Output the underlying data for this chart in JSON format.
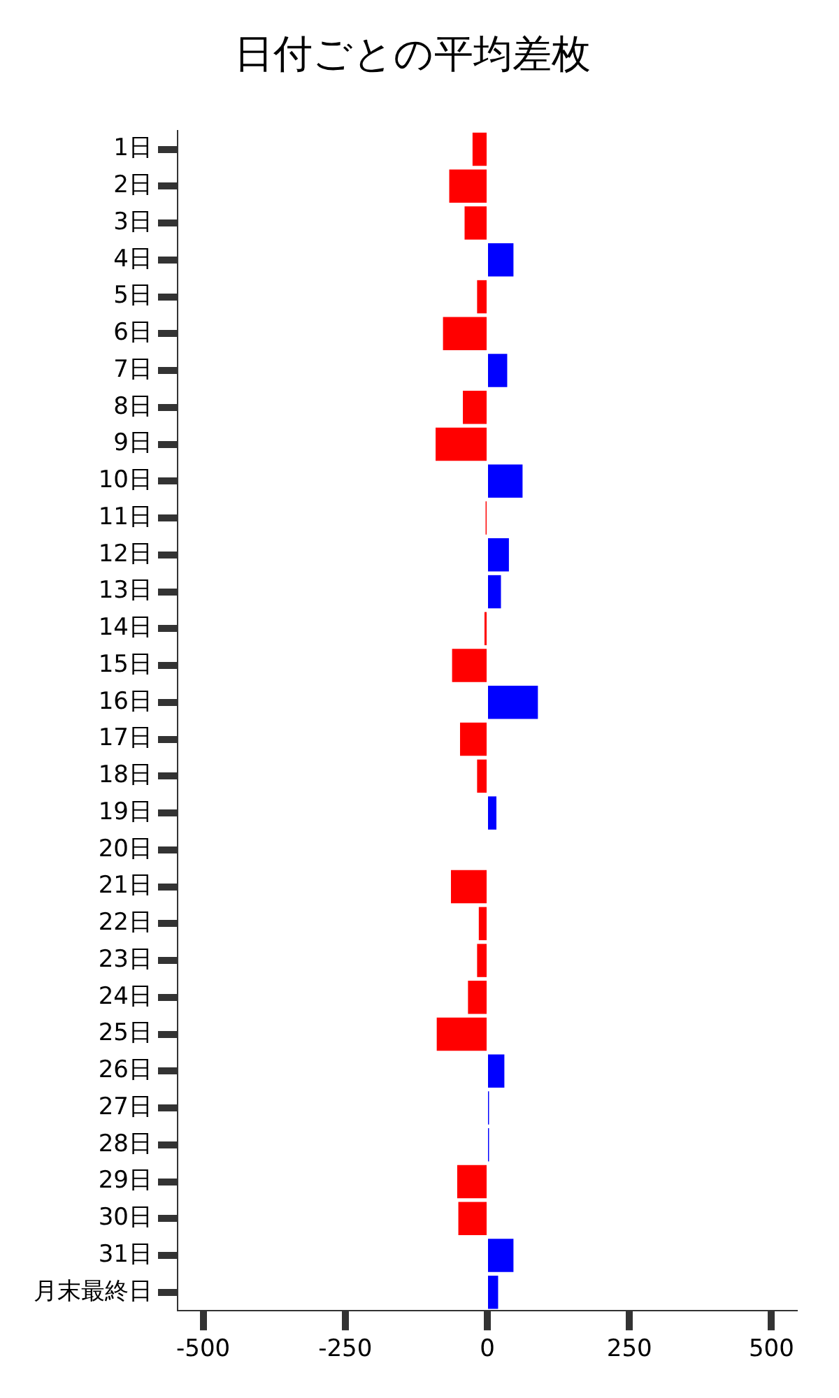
{
  "chart_data": {
    "type": "bar",
    "orientation": "horizontal",
    "title": "日付ごとの平均差枚",
    "categories": [
      "1日",
      "2日",
      "3日",
      "4日",
      "5日",
      "6日",
      "7日",
      "8日",
      "9日",
      "10日",
      "11日",
      "12日",
      "13日",
      "14日",
      "15日",
      "16日",
      "17日",
      "18日",
      "19日",
      "20日",
      "21日",
      "22日",
      "23日",
      "24日",
      "25日",
      "26日",
      "27日",
      "28日",
      "29日",
      "30日",
      "31日",
      "月末最終日"
    ],
    "values": [
      -26,
      -67,
      -40,
      46,
      -18,
      -78,
      35,
      -43,
      -91,
      62,
      -3,
      38,
      24,
      -5,
      -62,
      89,
      -48,
      -18,
      16,
      0,
      -64,
      -15,
      -18,
      -34,
      -89,
      30,
      3,
      3,
      -53,
      -51,
      46,
      19
    ],
    "colors": [
      "#ff0000",
      "#ff0000",
      "#ff0000",
      "#0000ff",
      "#ff0000",
      "#ff0000",
      "#0000ff",
      "#ff0000",
      "#ff0000",
      "#0000ff",
      "#ff0000",
      "#0000ff",
      "#0000ff",
      "#ff0000",
      "#ff0000",
      "#0000ff",
      "#ff0000",
      "#ff0000",
      "#0000ff",
      "#0000ff",
      "#ff0000",
      "#ff0000",
      "#ff0000",
      "#ff0000",
      "#ff0000",
      "#0000ff",
      "#0000ff",
      "#0000ff",
      "#ff0000",
      "#ff0000",
      "#0000ff",
      "#0000ff"
    ],
    "xlim": [
      -545,
      545
    ],
    "xticks": [
      -500,
      -250,
      0,
      250,
      500
    ],
    "grid": false,
    "legend": false
  }
}
